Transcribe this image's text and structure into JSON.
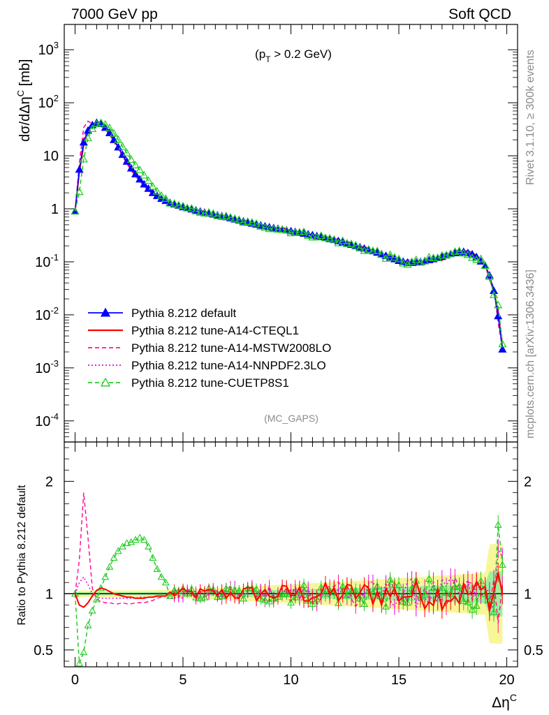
{
  "header": {
    "left": "7000 GeV pp",
    "right": "Soft QCD"
  },
  "side": {
    "top": "Rivet 3.1.10, ≥ 300k events",
    "bottom": "mcplots.cern.ch [arXiv:1306.3436]"
  },
  "chart_data": {
    "type": "line",
    "annotation": "(p_T > 0.2 GeV)",
    "analysis_label": "(MC_GAPS)",
    "xlabel": "Δη^C",
    "xlim": [
      -0.5,
      20.5
    ],
    "xticks": [
      0,
      5,
      10,
      15,
      20
    ],
    "upper": {
      "ylabel": "dσ/dΔη^C [mb]",
      "yscale": "log",
      "ylim": [
        4e-05,
        3000
      ],
      "yticks": [
        {
          "v": 0.0001,
          "b": "10",
          "e": "-4"
        },
        {
          "v": 0.001,
          "b": "10",
          "e": "-3"
        },
        {
          "v": 0.01,
          "b": "10",
          "e": "-2"
        },
        {
          "v": 0.1,
          "b": "10",
          "e": "-1"
        },
        {
          "v": 1,
          "b": "1",
          "e": ""
        },
        {
          "v": 10,
          "b": "10",
          "e": ""
        },
        {
          "v": 100,
          "b": "10",
          "e": "2"
        },
        {
          "v": 1000,
          "b": "10",
          "e": "3"
        }
      ],
      "reference_curve": {
        "x": [
          0,
          0.2,
          0.4,
          0.6,
          0.8,
          1.0,
          1.2,
          1.4,
          1.6,
          1.8,
          2.0,
          2.2,
          2.4,
          2.6,
          2.8,
          3.0,
          3.2,
          3.4,
          3.6,
          3.8,
          4.0,
          4.4,
          5.0,
          6.0,
          7.0,
          8.0,
          9.0,
          10.0,
          11.0,
          12.0,
          13.0,
          14.0,
          15.0,
          15.5,
          16.0,
          16.5,
          17.0,
          17.5,
          18.0,
          18.5,
          19.0,
          19.3,
          19.5,
          19.7,
          19.85
        ],
        "y": [
          0.9,
          5.5,
          18,
          30,
          38,
          42,
          40,
          34,
          27,
          20,
          14.5,
          10.5,
          7.8,
          5.8,
          4.5,
          3.6,
          2.9,
          2.4,
          2.0,
          1.75,
          1.55,
          1.3,
          1.08,
          0.85,
          0.7,
          0.55,
          0.45,
          0.38,
          0.32,
          0.26,
          0.2,
          0.15,
          0.105,
          0.095,
          0.1,
          0.11,
          0.125,
          0.145,
          0.155,
          0.135,
          0.085,
          0.045,
          0.018,
          0.005,
          0.0015
        ]
      },
      "series": [
        {
          "name": "Pythia 8.212 default",
          "color": "#0000ff",
          "line_style": "solid",
          "marker": "triangle-filled"
        },
        {
          "name": "Pythia 8.212 tune-A14-CTEQL1",
          "color": "#ff0000",
          "line_style": "solid",
          "marker": "none"
        },
        {
          "name": "Pythia 8.212 tune-A14-MSTW2008LO",
          "color": "#ff1493",
          "line_style": "dashed",
          "marker": "none"
        },
        {
          "name": "Pythia 8.212 tune-A14-NNPDF2.3LO",
          "color": "#e600e6",
          "line_style": "dotted",
          "marker": "none"
        },
        {
          "name": "Pythia 8.212 tune-CUETP8S1",
          "color": "#22cc22",
          "line_style": "dashed",
          "marker": "triangle-open"
        }
      ]
    },
    "lower": {
      "ylabel": "Ratio to Pythia 8.212 default",
      "ylim": [
        0.35,
        2.35
      ],
      "yticks": [
        0.5,
        1,
        2
      ],
      "ratios": {
        "x": [
          0,
          0.2,
          0.4,
          0.6,
          0.8,
          1.0,
          1.2,
          1.4,
          1.6,
          1.8,
          2.0,
          2.2,
          2.4,
          2.6,
          2.8,
          3.0,
          3.2,
          3.4,
          3.6,
          3.8,
          4.0,
          4.2,
          4.4
        ],
        "CTEQL1": [
          1.0,
          0.9,
          0.88,
          0.92,
          0.98,
          1.03,
          1.05,
          1.04,
          1.02,
          1.0,
          0.99,
          0.98,
          0.97,
          0.97,
          0.96,
          0.96,
          0.96,
          0.97,
          0.97,
          0.98,
          0.98,
          0.98,
          0.99
        ],
        "MSTW": [
          1.0,
          1.3,
          1.9,
          1.5,
          1.05,
          0.95,
          0.93,
          0.92,
          0.92,
          0.91,
          0.91,
          0.92,
          0.91,
          0.91,
          0.92,
          0.92,
          0.92,
          0.93,
          0.94,
          0.96,
          0.97,
          0.98,
          0.99
        ],
        "NNPDF": [
          1.0,
          1.1,
          1.15,
          1.08,
          1.0,
          0.97,
          0.96,
          0.96,
          0.96,
          0.96,
          0.96,
          0.96,
          0.96,
          0.96,
          0.96,
          0.97,
          0.97,
          0.97,
          0.97,
          0.98,
          0.98,
          0.98,
          0.99
        ],
        "CUETP8S1": [
          1.0,
          0.38,
          0.48,
          0.72,
          0.85,
          0.95,
          1.05,
          1.15,
          1.24,
          1.32,
          1.38,
          1.42,
          1.45,
          1.46,
          1.48,
          1.5,
          1.48,
          1.42,
          1.32,
          1.22,
          1.15,
          1.1,
          1.05
        ]
      }
    }
  }
}
